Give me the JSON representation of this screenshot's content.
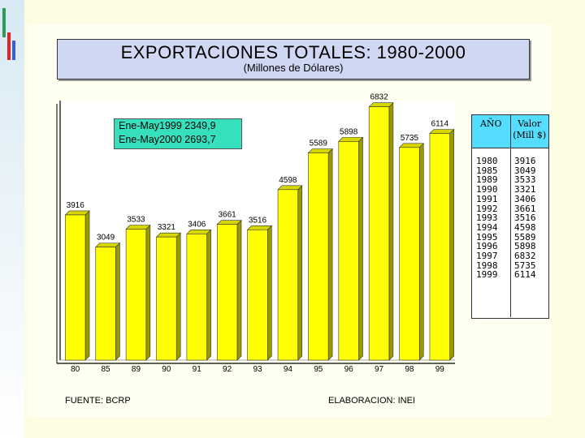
{
  "title": "EXPORTACIONES TOTALES: 1980-2000",
  "subtitle": "(Millones de Dólares)",
  "note": {
    "line1": "Ene-May1999  2349,9",
    "line2": "Ene-May2000  2693,7"
  },
  "table": {
    "header_year": "AÑO",
    "header_value": "Valor (Mill $)",
    "years": [
      "1980",
      "1985",
      "1989",
      "1990",
      "1991",
      "1992",
      "1993",
      "1994",
      "1995",
      "1996",
      "1997",
      "1998",
      "1999"
    ],
    "values": [
      "3916",
      "3049",
      "3533",
      "3321",
      "3406",
      "3661",
      "3516",
      "4598",
      "5589",
      "5898",
      "6832",
      "5735",
      "6114"
    ]
  },
  "footer": {
    "source": "FUENTE: BCRP",
    "elaboration": "ELABORACION: INEI"
  },
  "colors": {
    "bar": "#ffff00",
    "title_bg": "#cfd8f2",
    "note_bg": "#37e0bc",
    "table_head_bg": "#55ddff"
  },
  "chart_data": {
    "type": "bar",
    "categories": [
      "80",
      "85",
      "89",
      "90",
      "91",
      "92",
      "93",
      "94",
      "95",
      "96",
      "97",
      "98",
      "99"
    ],
    "values": [
      3916,
      3049,
      3533,
      3321,
      3406,
      3661,
      3516,
      4598,
      5589,
      5898,
      6832,
      5735,
      6114
    ],
    "value_labels": [
      "3916",
      "3049",
      "3533",
      "3321",
      "3406",
      "3661",
      "3516",
      "4598",
      "5589",
      "5898",
      "6832",
      "5735",
      "6114"
    ],
    "title": "EXPORTACIONES TOTALES: 1980-2000",
    "subtitle": "(Millones de Dólares)",
    "ylim": [
      0,
      7000
    ],
    "grid": false
  }
}
